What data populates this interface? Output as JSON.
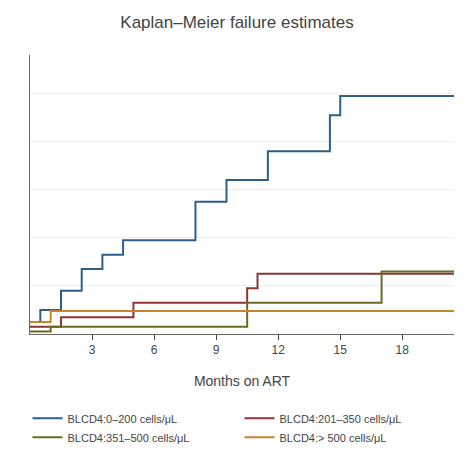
{
  "chart_data": {
    "type": "line",
    "title": "Kaplan–Meier failure estimates",
    "xlabel": "Months on ART",
    "xlim": [
      0,
      20.5
    ],
    "ylim": [
      0,
      0.58
    ],
    "xticks": [
      3,
      6,
      9,
      12,
      15,
      18
    ],
    "yticks": [
      0.1,
      0.2,
      0.3,
      0.4,
      0.5
    ],
    "grid": "y",
    "tick_labels": "x",
    "legend": "bottom",
    "series": [
      {
        "name": "BLCD4:0–200 cells/μL",
        "color": "#2e5f8a",
        "x": [
          0,
          0.5,
          0.5,
          1.5,
          1.5,
          2.5,
          2.5,
          3.5,
          3.5,
          4.5,
          4.5,
          8.0,
          8.0,
          9.5,
          9.5,
          11.5,
          11.5,
          14.5,
          14.5,
          15.0,
          15.0,
          20.5
        ],
        "values": [
          0.025,
          0.025,
          0.05,
          0.05,
          0.09,
          0.09,
          0.135,
          0.135,
          0.165,
          0.165,
          0.195,
          0.195,
          0.275,
          0.275,
          0.32,
          0.32,
          0.38,
          0.38,
          0.455,
          0.455,
          0.495,
          0.495
        ]
      },
      {
        "name": "BLCD4:201–350 cells/μL",
        "color": "#8b3535",
        "x": [
          0,
          1.5,
          1.5,
          5.0,
          5.0,
          10.5,
          10.5,
          11.0,
          11.0,
          20.5
        ],
        "values": [
          0.015,
          0.015,
          0.035,
          0.035,
          0.065,
          0.065,
          0.095,
          0.095,
          0.125,
          0.125
        ]
      },
      {
        "name": "BLCD4:351–500 cells/μL",
        "color": "#6b6b20",
        "x": [
          0,
          1.0,
          1.0,
          10.5,
          10.5,
          17.0,
          17.0,
          20.5
        ],
        "values": [
          0.005,
          0.005,
          0.015,
          0.015,
          0.065,
          0.065,
          0.13,
          0.13
        ]
      },
      {
        "name": "BLCD4:> 500 cells/μL",
        "color": "#c8852a",
        "x": [
          0,
          1.0,
          1.0,
          20.5
        ],
        "values": [
          0.025,
          0.025,
          0.048,
          0.048
        ]
      }
    ]
  }
}
